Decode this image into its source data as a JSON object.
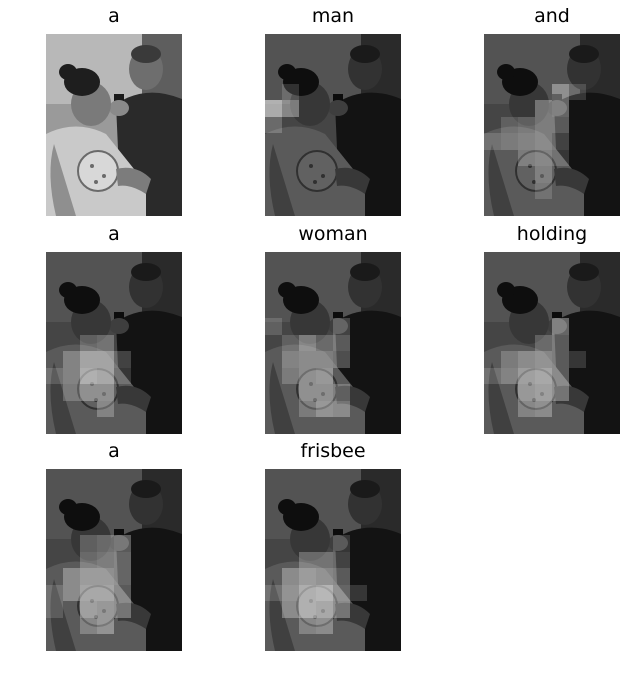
{
  "figure": {
    "captions": [
      "a",
      "man",
      "and",
      "a",
      "woman",
      "holding",
      "a",
      "frisbee"
    ],
    "attention_maps": [
      null,
      {
        "grid": "8x11",
        "focus": "left-edge",
        "hot": [
          [
            0,
            4,
            0.55
          ],
          [
            1,
            4,
            0.35
          ],
          [
            0,
            5,
            0.2
          ],
          [
            1,
            3,
            0.15
          ]
        ]
      },
      {
        "grid": "8x11",
        "focus": "center",
        "hot": [
          [
            4,
            3,
            0.35
          ],
          [
            3,
            4,
            0.3
          ],
          [
            4,
            4,
            0.35
          ],
          [
            4,
            5,
            0.3
          ],
          [
            3,
            5,
            0.3
          ],
          [
            2,
            5,
            0.2
          ],
          [
            1,
            6,
            0.2
          ],
          [
            2,
            6,
            0.25
          ],
          [
            3,
            6,
            0.3
          ],
          [
            4,
            6,
            0.2
          ],
          [
            3,
            7,
            0.25
          ],
          [
            2,
            7,
            0.2
          ],
          [
            4,
            7,
            0.15
          ],
          [
            3,
            8,
            0.2
          ],
          [
            0,
            6,
            0.15
          ],
          [
            1,
            5,
            0.15
          ],
          [
            5,
            3,
            0.15
          ],
          [
            3,
            9,
            0.15
          ]
        ]
      },
      {
        "grid": "8x11",
        "focus": "frisbee",
        "hot": [
          [
            2,
            6,
            0.45
          ],
          [
            3,
            6,
            0.45
          ],
          [
            2,
            7,
            0.5
          ],
          [
            3,
            7,
            0.45
          ],
          [
            1,
            6,
            0.25
          ],
          [
            4,
            6,
            0.2
          ],
          [
            1,
            7,
            0.25
          ],
          [
            2,
            5,
            0.2
          ],
          [
            3,
            5,
            0.25
          ],
          [
            2,
            8,
            0.3
          ],
          [
            3,
            8,
            0.3
          ],
          [
            1,
            8,
            0.2
          ],
          [
            3,
            9,
            0.25
          ],
          [
            0,
            7,
            0.15
          ],
          [
            4,
            7,
            0.15
          ]
        ]
      },
      {
        "grid": "8x11",
        "focus": "woman-and-frisbee",
        "hot": [
          [
            2,
            5,
            0.35
          ],
          [
            4,
            5,
            0.3
          ],
          [
            3,
            5,
            0.2
          ],
          [
            1,
            6,
            0.25
          ],
          [
            2,
            6,
            0.3
          ],
          [
            3,
            6,
            0.3
          ],
          [
            4,
            6,
            0.25
          ],
          [
            2,
            7,
            0.3
          ],
          [
            3,
            7,
            0.35
          ],
          [
            1,
            7,
            0.2
          ],
          [
            2,
            8,
            0.3
          ],
          [
            3,
            8,
            0.3
          ],
          [
            4,
            8,
            0.2
          ],
          [
            3,
            9,
            0.35
          ],
          [
            4,
            9,
            0.3
          ],
          [
            2,
            9,
            0.2
          ],
          [
            0,
            4,
            0.15
          ],
          [
            4,
            4,
            0.2
          ],
          [
            1,
            5,
            0.15
          ]
        ]
      },
      {
        "grid": "8x11",
        "focus": "hands-and-frisbee",
        "hot": [
          [
            4,
            4,
            0.35
          ],
          [
            4,
            5,
            0.3
          ],
          [
            3,
            5,
            0.2
          ],
          [
            2,
            6,
            0.3
          ],
          [
            3,
            6,
            0.35
          ],
          [
            4,
            6,
            0.3
          ],
          [
            1,
            6,
            0.2
          ],
          [
            2,
            7,
            0.4
          ],
          [
            3,
            7,
            0.45
          ],
          [
            4,
            7,
            0.3
          ],
          [
            1,
            7,
            0.25
          ],
          [
            2,
            8,
            0.35
          ],
          [
            3,
            8,
            0.4
          ],
          [
            4,
            8,
            0.3
          ],
          [
            3,
            9,
            0.3
          ],
          [
            2,
            9,
            0.25
          ],
          [
            5,
            6,
            0.15
          ],
          [
            0,
            7,
            0.15
          ]
        ]
      },
      {
        "grid": "8x11",
        "focus": "frisbee",
        "hot": [
          [
            2,
            4,
            0.2
          ],
          [
            3,
            4,
            0.25
          ],
          [
            4,
            4,
            0.3
          ],
          [
            4,
            5,
            0.35
          ],
          [
            3,
            5,
            0.3
          ],
          [
            2,
            5,
            0.25
          ],
          [
            1,
            6,
            0.3
          ],
          [
            2,
            6,
            0.4
          ],
          [
            3,
            6,
            0.4
          ],
          [
            4,
            6,
            0.35
          ],
          [
            2,
            7,
            0.45
          ],
          [
            3,
            7,
            0.45
          ],
          [
            1,
            7,
            0.3
          ],
          [
            4,
            7,
            0.3
          ],
          [
            2,
            8,
            0.4
          ],
          [
            3,
            8,
            0.35
          ],
          [
            4,
            8,
            0.3
          ],
          [
            3,
            9,
            0.35
          ],
          [
            2,
            9,
            0.25
          ],
          [
            0,
            7,
            0.15
          ],
          [
            0,
            8,
            0.15
          ]
        ]
      },
      {
        "grid": "8x11",
        "focus": "frisbee",
        "hot": [
          [
            1,
            6,
            0.3
          ],
          [
            2,
            6,
            0.4
          ],
          [
            3,
            6,
            0.35
          ],
          [
            4,
            6,
            0.3
          ],
          [
            1,
            7,
            0.35
          ],
          [
            2,
            7,
            0.5
          ],
          [
            3,
            7,
            0.55
          ],
          [
            4,
            7,
            0.35
          ],
          [
            2,
            8,
            0.5
          ],
          [
            3,
            8,
            0.45
          ],
          [
            1,
            8,
            0.3
          ],
          [
            4,
            8,
            0.3
          ],
          [
            2,
            5,
            0.25
          ],
          [
            3,
            5,
            0.25
          ],
          [
            4,
            5,
            0.2
          ],
          [
            3,
            9,
            0.3
          ],
          [
            2,
            9,
            0.25
          ],
          [
            0,
            7,
            0.15
          ],
          [
            5,
            7,
            0.15
          ],
          [
            4,
            4,
            0.15
          ]
        ]
      }
    ]
  }
}
